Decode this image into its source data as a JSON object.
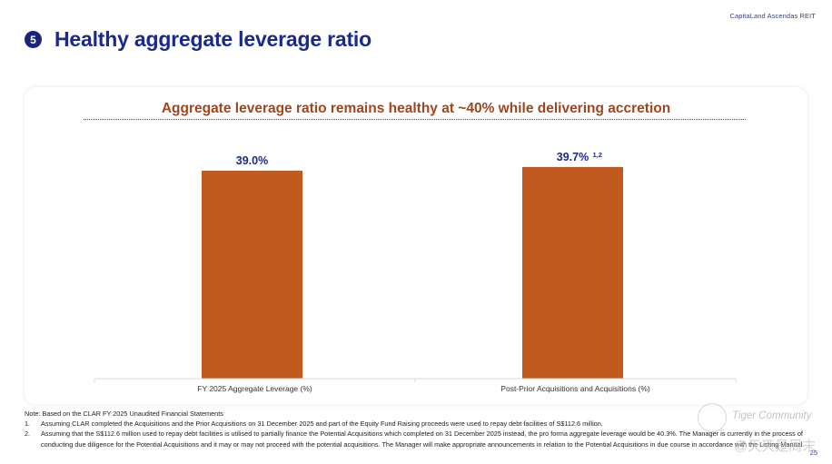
{
  "header": {
    "brand": "CapitaLand Ascendas REIT",
    "section_number": "5",
    "title": "Healthy aggregate leverage ratio"
  },
  "chart_data": {
    "type": "bar",
    "title": "Aggregate leverage ratio remains healthy at ~40% while delivering accretion",
    "categories": [
      "FY 2025 Aggregate Leverage (%)",
      "Post-Prior Acquisitions and Acquisitions (%)"
    ],
    "values": [
      39.0,
      39.7
    ],
    "data_labels": [
      "39.0%",
      "39.7%"
    ],
    "data_label_superscripts": [
      "",
      "1,2"
    ],
    "unit": "%",
    "xlabel": "",
    "ylabel": "",
    "ylim": [
      0,
      45
    ],
    "grid": false,
    "legend": "none",
    "bar_color": "#c05a1e",
    "label_color": "#1a2a8c"
  },
  "notes": {
    "intro": "Note: Based on the CLAR FY 2025 Unaudited Financial Statements",
    "items": [
      {
        "index": "1.",
        "text": "Assuming CLAR completed the Acquisitions and the Prior Acquisitions on 31 December 2025 and part of the Equity Fund Raising proceeds were used to repay debt facilities of S$112.6 million."
      },
      {
        "index": "2.",
        "text": "Assuming that the S$112.6 million used to repay debt facilities is utilised to partially finance the Potential Acquisitions which completed on 31 December 2025 instead, the pro forma aggregate leverage would be 40.3%. The Manager is currently in the process of conducting due diligence for the Potential Acquisitions and it may or may not proceed with the potential acquisitions. The Manager will make appropriate announcements in relation to the Potential Acquisitions in due course in accordance with the Listing Manual."
      }
    ]
  },
  "footer": {
    "page_number": "25"
  },
  "watermark": {
    "line1": "Tiger Community",
    "line2": "@天天是周末"
  }
}
